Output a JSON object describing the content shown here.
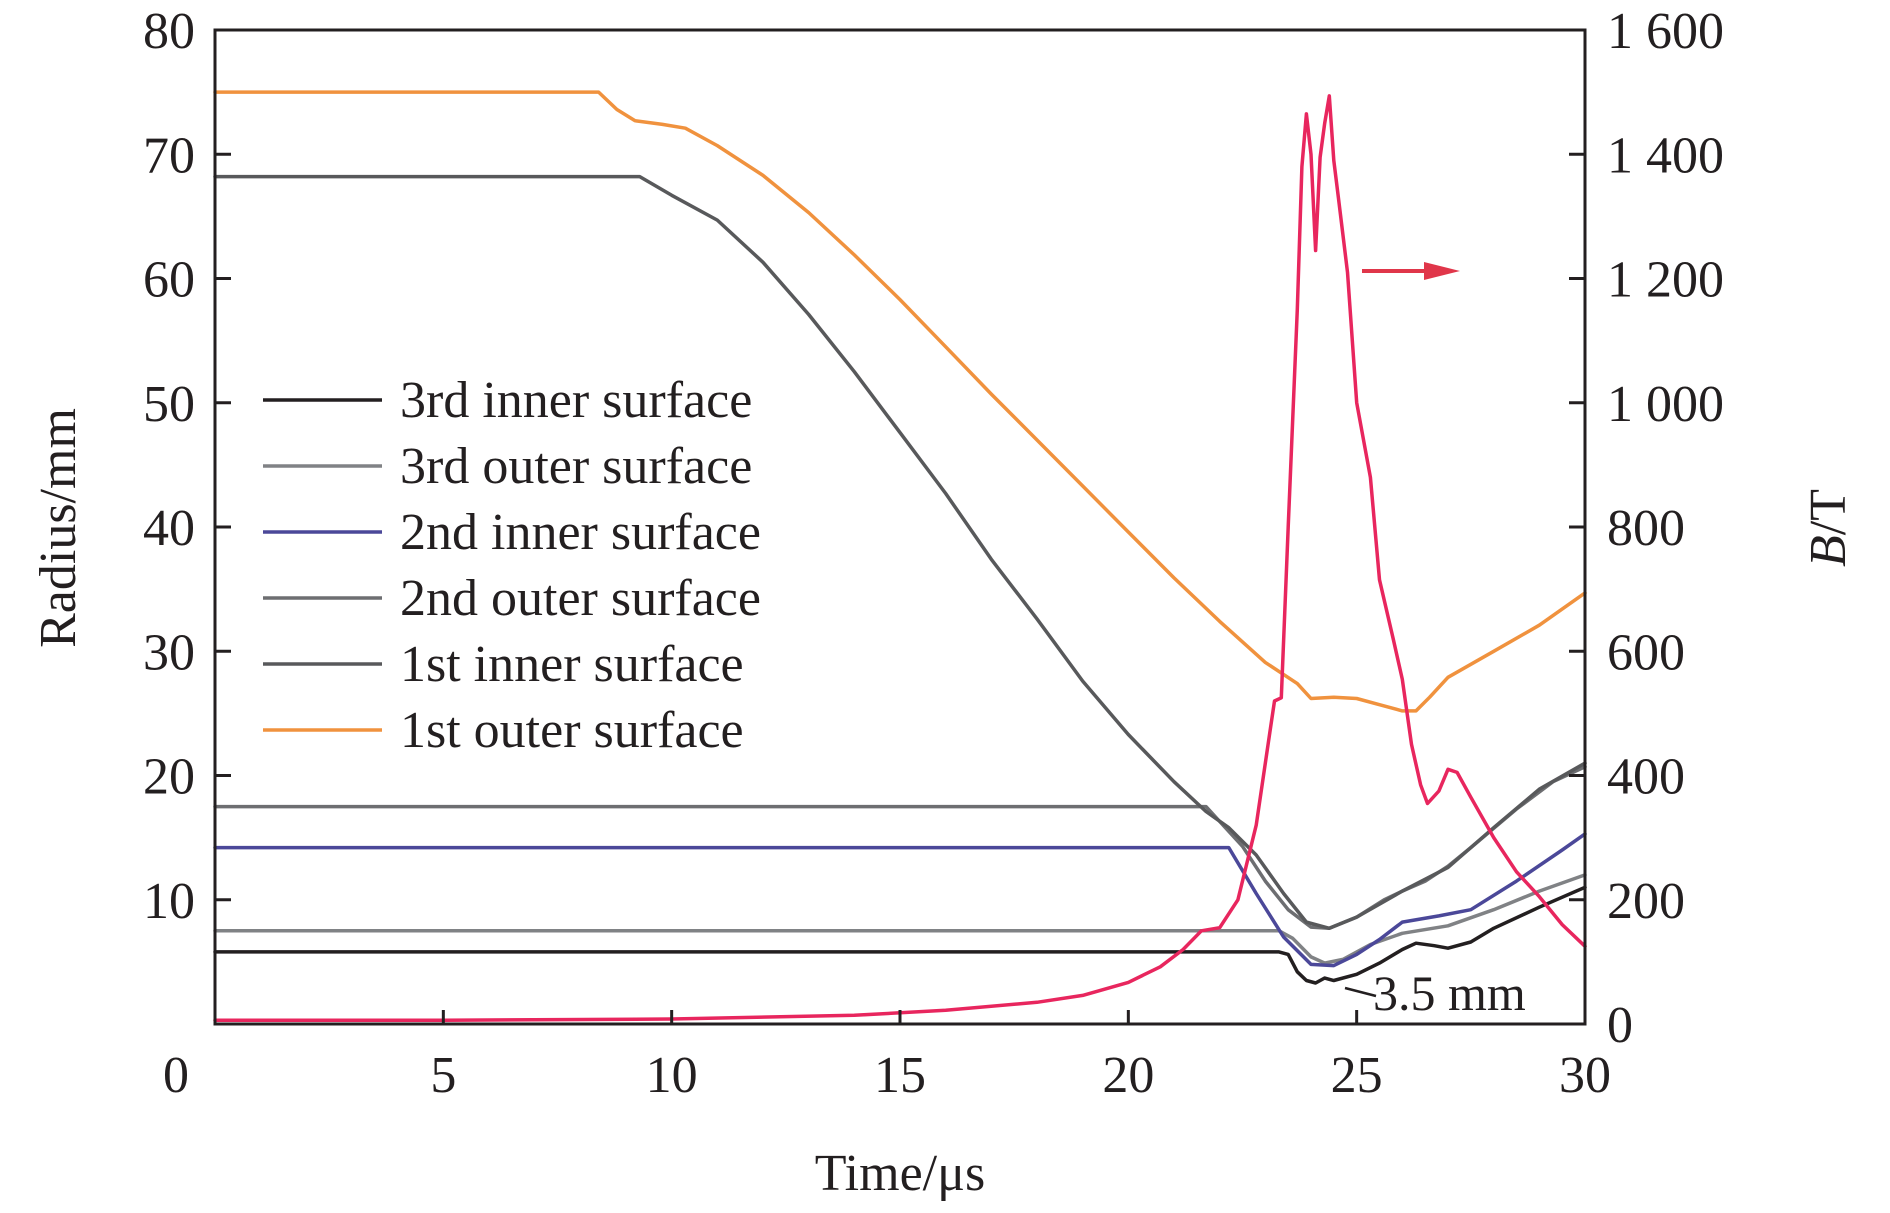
{
  "chart_data": {
    "type": "line",
    "xlabel": "Time/μs",
    "ylabel": "Radius/mm",
    "y2label_italic": "B",
    "y2label_rest": "/T",
    "xlim": [
      0,
      30
    ],
    "ylim": [
      0,
      80
    ],
    "y2lim": [
      0,
      1600
    ],
    "x_ticks": [
      0,
      5,
      10,
      15,
      20,
      25,
      30
    ],
    "x_tick_labels": [
      "0",
      "5",
      "10",
      "15",
      "20",
      "25",
      "30"
    ],
    "y_ticks": [
      10,
      20,
      30,
      40,
      50,
      60,
      70,
      80
    ],
    "y_tick_labels": [
      "10",
      "20",
      "30",
      "40",
      "50",
      "60",
      "70",
      "80"
    ],
    "y2_ticks": [
      0,
      200,
      400,
      600,
      800,
      1000,
      1200,
      1400,
      1600
    ],
    "y2_tick_labels": [
      "0",
      "200",
      "400",
      "600",
      "800",
      "1 000",
      "1 200",
      "1 400",
      "1 600"
    ],
    "grid": false,
    "legend_position": "left-middle",
    "annotation": "3.5 mm",
    "series": [
      {
        "name": "3rd inner surface",
        "axis": "left",
        "color": "#231f20",
        "points": [
          [
            0,
            5.8
          ],
          [
            23.3,
            5.8
          ],
          [
            23.5,
            5.6
          ],
          [
            23.7,
            4.2
          ],
          [
            23.9,
            3.5
          ],
          [
            24.1,
            3.3
          ],
          [
            24.3,
            3.7
          ],
          [
            24.5,
            3.5
          ],
          [
            25.0,
            4.0
          ],
          [
            25.5,
            4.9
          ],
          [
            26.0,
            6.0
          ],
          [
            26.3,
            6.5
          ],
          [
            26.7,
            6.3
          ],
          [
            27.0,
            6.1
          ],
          [
            27.5,
            6.6
          ],
          [
            28.0,
            7.7
          ],
          [
            29.0,
            9.4
          ],
          [
            30.0,
            11.0
          ]
        ]
      },
      {
        "name": "3rd outer surface",
        "axis": "left",
        "color": "#808285",
        "points": [
          [
            0,
            7.5
          ],
          [
            23.3,
            7.5
          ],
          [
            23.6,
            6.9
          ],
          [
            24.0,
            5.4
          ],
          [
            24.3,
            4.9
          ],
          [
            24.7,
            5.2
          ],
          [
            25.3,
            6.4
          ],
          [
            26.0,
            7.3
          ],
          [
            27.0,
            7.9
          ],
          [
            28.0,
            9.2
          ],
          [
            29.0,
            10.7
          ],
          [
            30.0,
            12.0
          ]
        ]
      },
      {
        "name": "2nd inner surface",
        "axis": "left",
        "color": "#4b4899",
        "points": [
          [
            0,
            14.2
          ],
          [
            22.2,
            14.2
          ],
          [
            22.8,
            10.5
          ],
          [
            23.4,
            7.0
          ],
          [
            24.0,
            4.8
          ],
          [
            24.5,
            4.7
          ],
          [
            25.0,
            5.6
          ],
          [
            25.5,
            6.8
          ],
          [
            26.0,
            8.2
          ],
          [
            26.8,
            8.7
          ],
          [
            27.5,
            9.2
          ],
          [
            28.5,
            11.5
          ],
          [
            29.5,
            14.0
          ],
          [
            30.0,
            15.3
          ]
        ]
      },
      {
        "name": "2nd outer surface",
        "axis": "left",
        "color": "#6d6e71",
        "points": [
          [
            0,
            17.5
          ],
          [
            21.7,
            17.5
          ],
          [
            22.0,
            16.3
          ],
          [
            22.5,
            14.3
          ],
          [
            23.0,
            11.5
          ],
          [
            23.5,
            9.2
          ],
          [
            24.0,
            7.8
          ],
          [
            24.4,
            7.7
          ],
          [
            25.0,
            8.6
          ],
          [
            25.6,
            10.0
          ],
          [
            26.0,
            10.7
          ],
          [
            26.5,
            11.5
          ],
          [
            27.0,
            12.7
          ],
          [
            27.5,
            14.2
          ],
          [
            28.5,
            17.3
          ],
          [
            29.3,
            19.5
          ],
          [
            30.0,
            20.7
          ]
        ]
      },
      {
        "name": "1st inner surface",
        "axis": "left",
        "color": "#58595b",
        "points": [
          [
            0,
            68.2
          ],
          [
            9.3,
            68.2
          ],
          [
            10.0,
            66.7
          ],
          [
            11.0,
            64.7
          ],
          [
            12.0,
            61.3
          ],
          [
            13.0,
            57.1
          ],
          [
            14.0,
            52.5
          ],
          [
            15.0,
            47.6
          ],
          [
            16.0,
            42.7
          ],
          [
            17.0,
            37.4
          ],
          [
            18.0,
            32.6
          ],
          [
            19.0,
            27.6
          ],
          [
            20.0,
            23.3
          ],
          [
            21.0,
            19.5
          ],
          [
            21.7,
            17.1
          ],
          [
            22.2,
            15.8
          ],
          [
            22.8,
            13.6
          ],
          [
            23.4,
            10.5
          ],
          [
            23.9,
            8.2
          ],
          [
            24.4,
            7.7
          ],
          [
            25.0,
            8.6
          ],
          [
            26.0,
            10.7
          ],
          [
            27.0,
            12.6
          ],
          [
            28.0,
            15.8
          ],
          [
            29.0,
            18.9
          ],
          [
            30.0,
            21.0
          ]
        ]
      },
      {
        "name": "1st outer surface",
        "axis": "left",
        "color": "#f0923e",
        "points": [
          [
            0,
            75.0
          ],
          [
            8.4,
            75.0
          ],
          [
            8.8,
            73.6
          ],
          [
            9.2,
            72.7
          ],
          [
            9.8,
            72.4
          ],
          [
            10.3,
            72.1
          ],
          [
            11.0,
            70.7
          ],
          [
            12.0,
            68.3
          ],
          [
            13.0,
            65.3
          ],
          [
            14.0,
            61.9
          ],
          [
            15.0,
            58.3
          ],
          [
            16.0,
            54.5
          ],
          [
            17.0,
            50.7
          ],
          [
            18.0,
            47.0
          ],
          [
            19.0,
            43.3
          ],
          [
            20.0,
            39.6
          ],
          [
            21.0,
            35.9
          ],
          [
            22.0,
            32.4
          ],
          [
            23.0,
            29.1
          ],
          [
            23.7,
            27.4
          ],
          [
            24.0,
            26.2
          ],
          [
            24.5,
            26.3
          ],
          [
            25.0,
            26.2
          ],
          [
            25.5,
            25.7
          ],
          [
            26.0,
            25.2
          ],
          [
            26.3,
            25.2
          ],
          [
            26.6,
            26.3
          ],
          [
            27.0,
            27.9
          ],
          [
            28.0,
            30.0
          ],
          [
            29.0,
            32.1
          ],
          [
            30.0,
            34.7
          ]
        ]
      },
      {
        "name": "",
        "axis": "right",
        "color": "#e8265e",
        "points": [
          [
            0,
            6
          ],
          [
            5,
            6
          ],
          [
            10,
            8
          ],
          [
            14,
            14
          ],
          [
            16,
            22
          ],
          [
            18,
            35
          ],
          [
            19,
            46
          ],
          [
            20,
            67
          ],
          [
            20.7,
            92
          ],
          [
            21.2,
            120
          ],
          [
            21.6,
            150
          ],
          [
            22.0,
            155
          ],
          [
            22.4,
            200
          ],
          [
            22.8,
            320
          ],
          [
            23.1,
            470
          ],
          [
            23.2,
            520
          ],
          [
            23.35,
            525
          ],
          [
            23.5,
            800
          ],
          [
            23.7,
            1150
          ],
          [
            23.8,
            1380
          ],
          [
            23.9,
            1465
          ],
          [
            24.0,
            1400
          ],
          [
            24.1,
            1245
          ],
          [
            24.2,
            1395
          ],
          [
            24.3,
            1450
          ],
          [
            24.4,
            1494
          ],
          [
            24.5,
            1390
          ],
          [
            24.6,
            1330
          ],
          [
            24.8,
            1210
          ],
          [
            25.0,
            1000
          ],
          [
            25.3,
            880
          ],
          [
            25.5,
            715
          ],
          [
            25.8,
            620
          ],
          [
            26.0,
            555
          ],
          [
            26.2,
            450
          ],
          [
            26.4,
            385
          ],
          [
            26.55,
            355
          ],
          [
            26.8,
            375
          ],
          [
            27.0,
            410
          ],
          [
            27.2,
            405
          ],
          [
            27.5,
            365
          ],
          [
            28.0,
            300
          ],
          [
            28.5,
            245
          ],
          [
            29.0,
            205
          ],
          [
            29.5,
            160
          ],
          [
            30.0,
            125
          ]
        ]
      }
    ]
  }
}
